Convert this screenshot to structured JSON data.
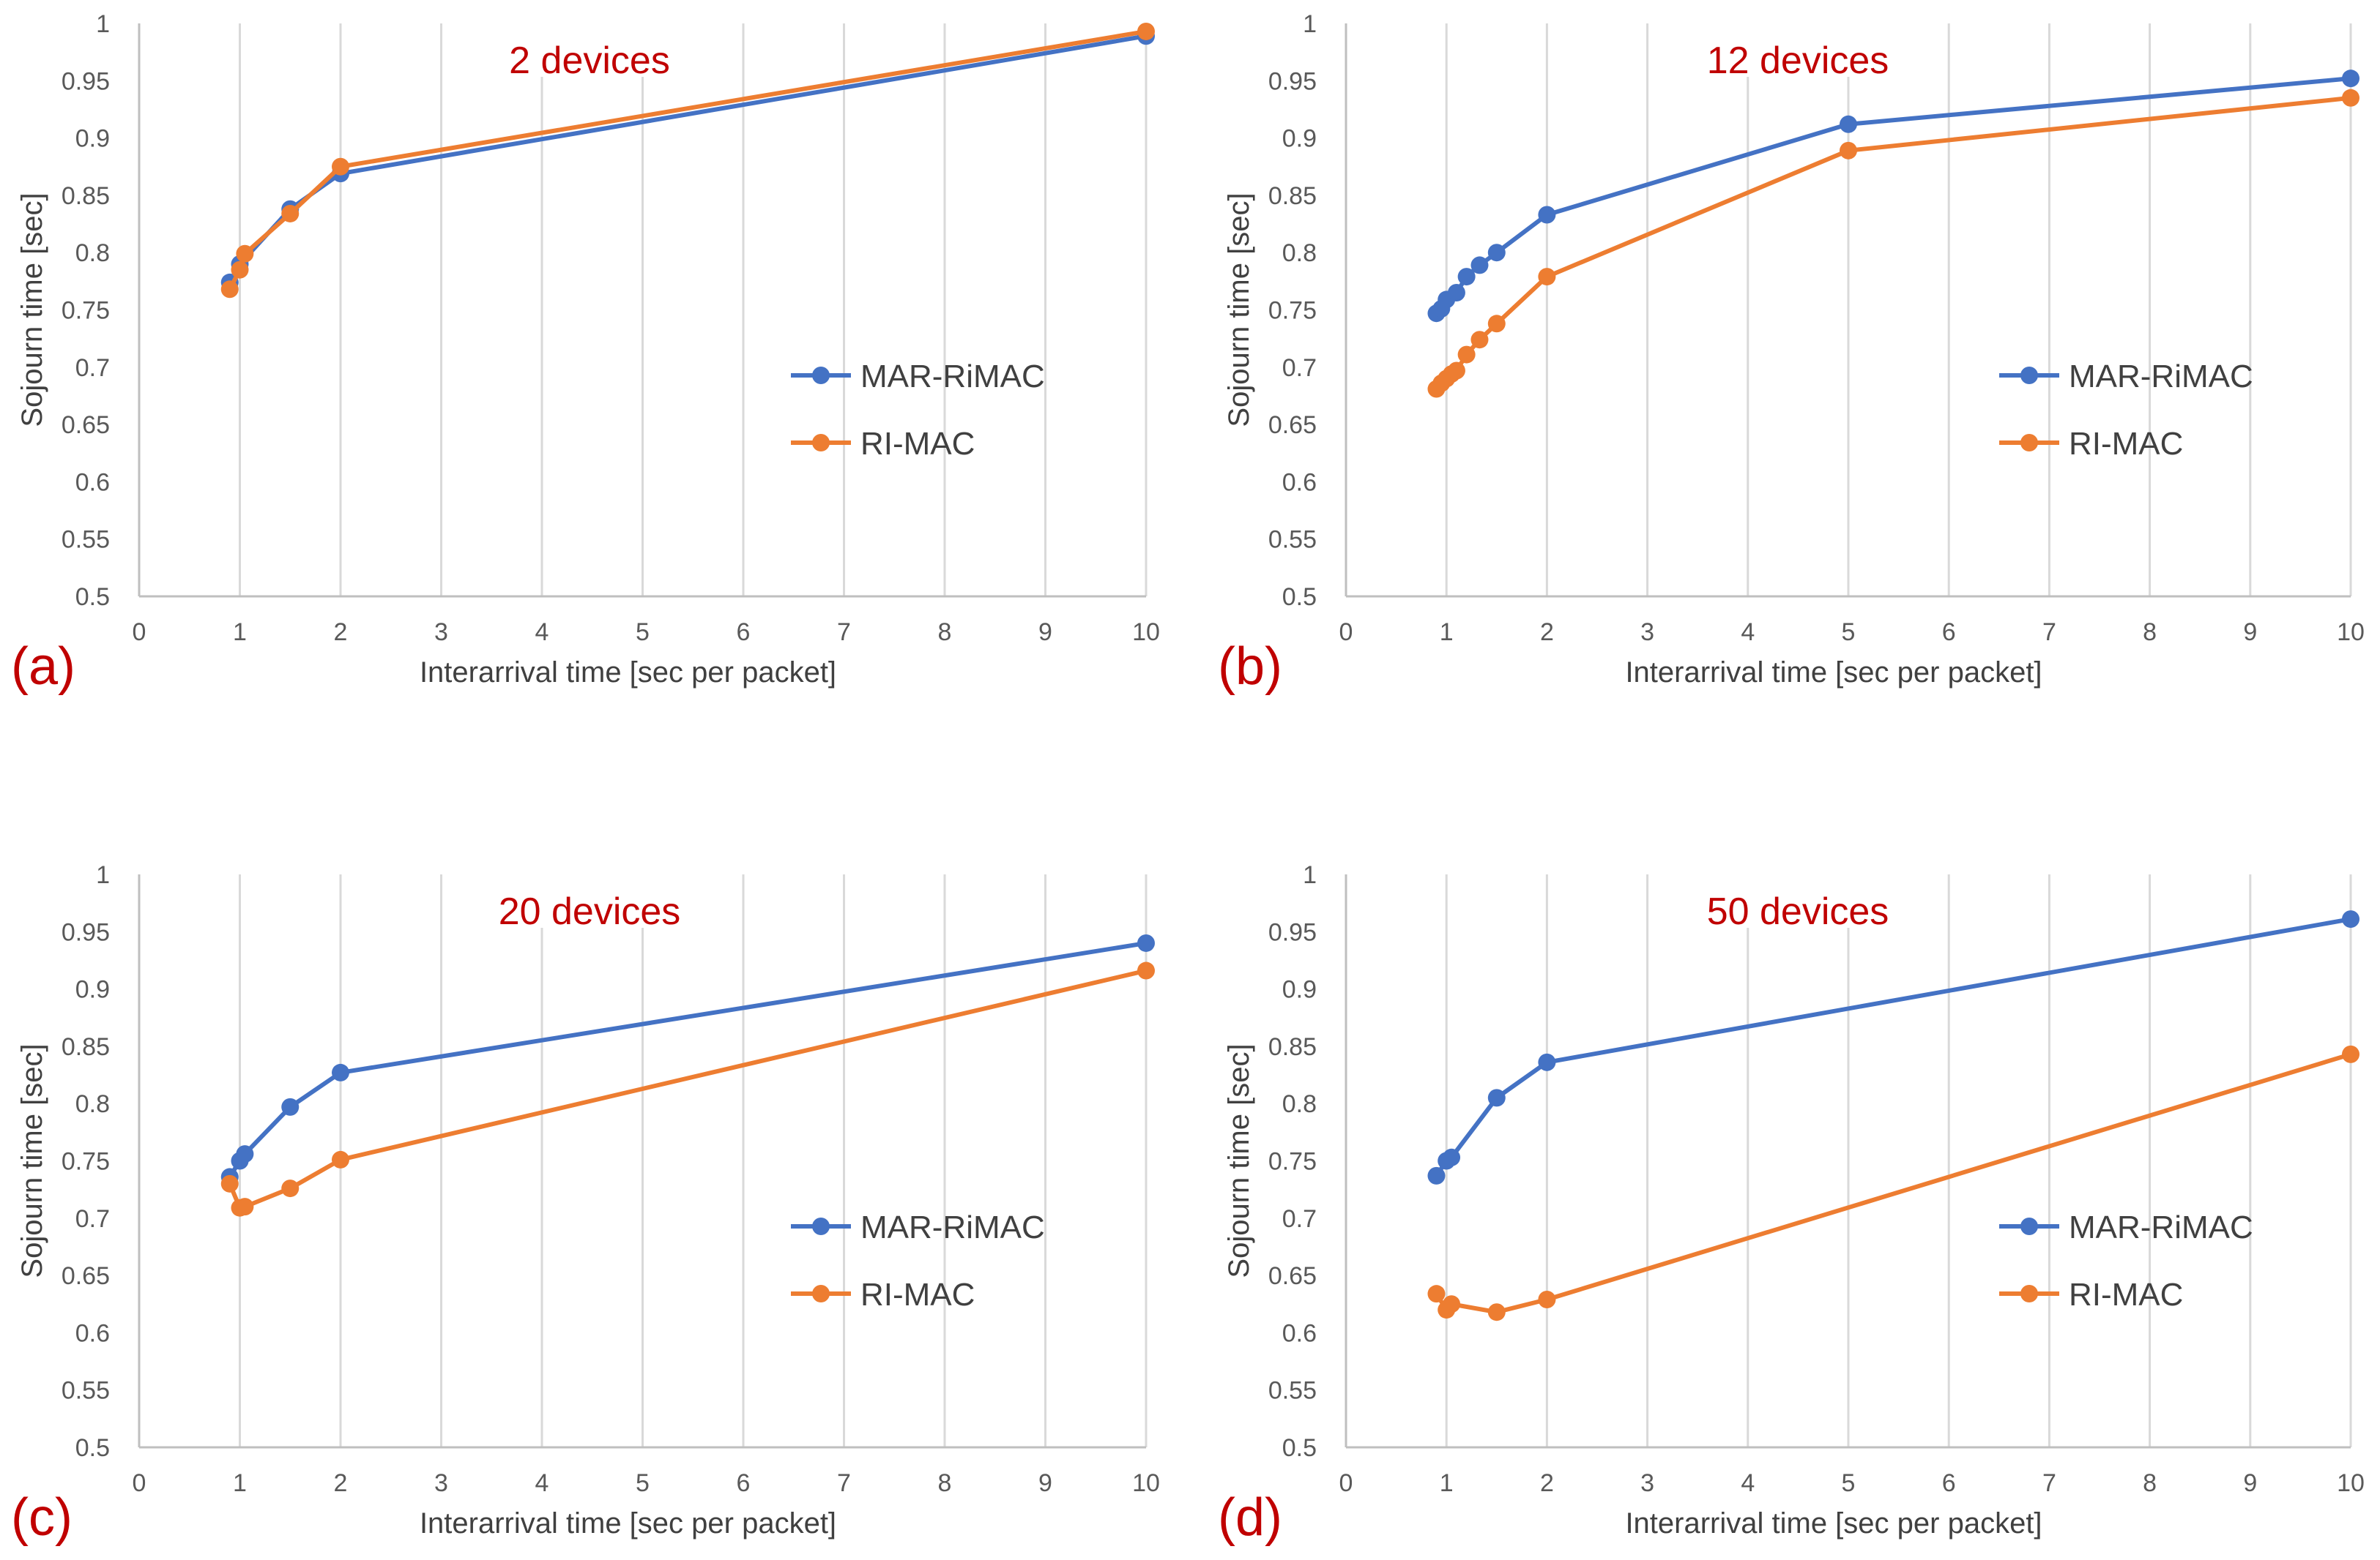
{
  "chart_data": [
    {
      "type": "line",
      "panel_label": "(a)",
      "title": "2 devices",
      "xlabel": "Interarrival time [sec per packet]",
      "ylabel": "Sojourn time [sec]",
      "xlim": [
        0,
        10
      ],
      "ylim": [
        0.5,
        1
      ],
      "xticks": [
        0,
        1,
        2,
        3,
        4,
        5,
        6,
        7,
        8,
        9,
        10
      ],
      "yticks": [
        0.5,
        0.55,
        0.6,
        0.65,
        0.7,
        0.75,
        0.8,
        0.85,
        0.9,
        0.95,
        1
      ],
      "ytick_labels": [
        "0.5",
        "0.55",
        "0.6",
        "0.65",
        "0.7",
        "0.75",
        "0.8",
        "0.85",
        "0.9",
        "0.95",
        "1"
      ],
      "grid": "vertical",
      "legend_position": "right-middle",
      "series": [
        {
          "name": "MAR-RiMAC",
          "color": "#4472c4",
          "x": [
            0.9,
            1.0,
            1.5,
            2.0,
            10.0
          ],
          "y": [
            0.774,
            0.79,
            0.838,
            0.869,
            0.989
          ]
        },
        {
          "name": "RI-MAC",
          "color": "#ed7d31",
          "x": [
            0.9,
            1.0,
            1.05,
            1.5,
            2.0,
            10.0
          ],
          "y": [
            0.768,
            0.785,
            0.799,
            0.834,
            0.875,
            0.993
          ]
        }
      ]
    },
    {
      "type": "line",
      "panel_label": "(b)",
      "title": "12 devices",
      "xlabel": "Interarrival time [sec per packet]",
      "ylabel": "Sojourn time [sec]",
      "xlim": [
        0,
        10
      ],
      "ylim": [
        0.5,
        1
      ],
      "xticks": [
        0,
        1,
        2,
        3,
        4,
        5,
        6,
        7,
        8,
        9,
        10
      ],
      "yticks": [
        0.5,
        0.55,
        0.6,
        0.65,
        0.7,
        0.75,
        0.8,
        0.85,
        0.9,
        0.95,
        1
      ],
      "ytick_labels": [
        "0.5",
        "0.55",
        "0.6",
        "0.65",
        "0.7",
        "0.75",
        "0.8",
        "0.85",
        "0.9",
        "0.95",
        "1"
      ],
      "grid": "vertical",
      "legend_position": "right-middle",
      "series": [
        {
          "name": "MAR-RiMAC",
          "color": "#4472c4",
          "x": [
            0.9,
            0.95,
            1.0,
            1.1,
            1.2,
            1.33,
            1.5,
            2.0,
            5.0,
            10.0
          ],
          "y": [
            0.747,
            0.751,
            0.759,
            0.765,
            0.779,
            0.789,
            0.8,
            0.833,
            0.912,
            0.952
          ]
        },
        {
          "name": "RI-MAC",
          "color": "#ed7d31",
          "x": [
            0.9,
            0.95,
            1.0,
            1.05,
            1.1,
            1.2,
            1.33,
            1.5,
            2.0,
            5.0,
            10.0
          ],
          "y": [
            0.681,
            0.686,
            0.69,
            0.694,
            0.697,
            0.711,
            0.724,
            0.738,
            0.779,
            0.889,
            0.935
          ]
        }
      ]
    },
    {
      "type": "line",
      "panel_label": "(c)",
      "title": "20 devices",
      "xlabel": "Interarrival time [sec per packet]",
      "ylabel": "Sojourn time [sec]",
      "xlim": [
        0,
        10
      ],
      "ylim": [
        0.5,
        1
      ],
      "xticks": [
        0,
        1,
        2,
        3,
        4,
        5,
        6,
        7,
        8,
        9,
        10
      ],
      "yticks": [
        0.5,
        0.55,
        0.6,
        0.65,
        0.7,
        0.75,
        0.8,
        0.85,
        0.9,
        0.95,
        1
      ],
      "ytick_labels": [
        "0.5",
        "0.55",
        "0.6",
        "0.65",
        "0.7",
        "0.75",
        "0.8",
        "0.85",
        "0.9",
        "0.95",
        "1"
      ],
      "grid": "vertical",
      "legend_position": "right-middle",
      "series": [
        {
          "name": "MAR-RiMAC",
          "color": "#4472c4",
          "x": [
            0.9,
            1.0,
            1.05,
            1.5,
            2.0,
            10.0
          ],
          "y": [
            0.736,
            0.75,
            0.756,
            0.797,
            0.827,
            0.94
          ]
        },
        {
          "name": "RI-MAC",
          "color": "#ed7d31",
          "x": [
            0.9,
            1.0,
            1.05,
            1.5,
            2.0,
            10.0
          ],
          "y": [
            0.73,
            0.709,
            0.71,
            0.726,
            0.751,
            0.916
          ]
        }
      ]
    },
    {
      "type": "line",
      "panel_label": "(d)",
      "title": "50 devices",
      "xlabel": "Interarrival time [sec per packet]",
      "ylabel": "Sojourn time [sec]",
      "xlim": [
        0,
        10
      ],
      "ylim": [
        0.5,
        1
      ],
      "xticks": [
        0,
        1,
        2,
        3,
        4,
        5,
        6,
        7,
        8,
        9,
        10
      ],
      "yticks": [
        0.5,
        0.55,
        0.6,
        0.65,
        0.7,
        0.75,
        0.8,
        0.85,
        0.9,
        0.95,
        1
      ],
      "ytick_labels": [
        "0.5",
        "0.55",
        "0.6",
        "0.65",
        "0.7",
        "0.75",
        "0.8",
        "0.85",
        "0.9",
        "0.95",
        "1"
      ],
      "grid": "vertical",
      "legend_position": "right-middle",
      "series": [
        {
          "name": "MAR-RiMAC",
          "color": "#4472c4",
          "x": [
            0.9,
            1.0,
            1.05,
            1.5,
            2.0,
            10.0
          ],
          "y": [
            0.737,
            0.75,
            0.753,
            0.805,
            0.836,
            0.961
          ]
        },
        {
          "name": "RI-MAC",
          "color": "#ed7d31",
          "x": [
            0.9,
            1.0,
            1.05,
            1.5,
            2.0,
            10.0
          ],
          "y": [
            0.634,
            0.62,
            0.625,
            0.618,
            0.629,
            0.843
          ]
        }
      ]
    }
  ]
}
